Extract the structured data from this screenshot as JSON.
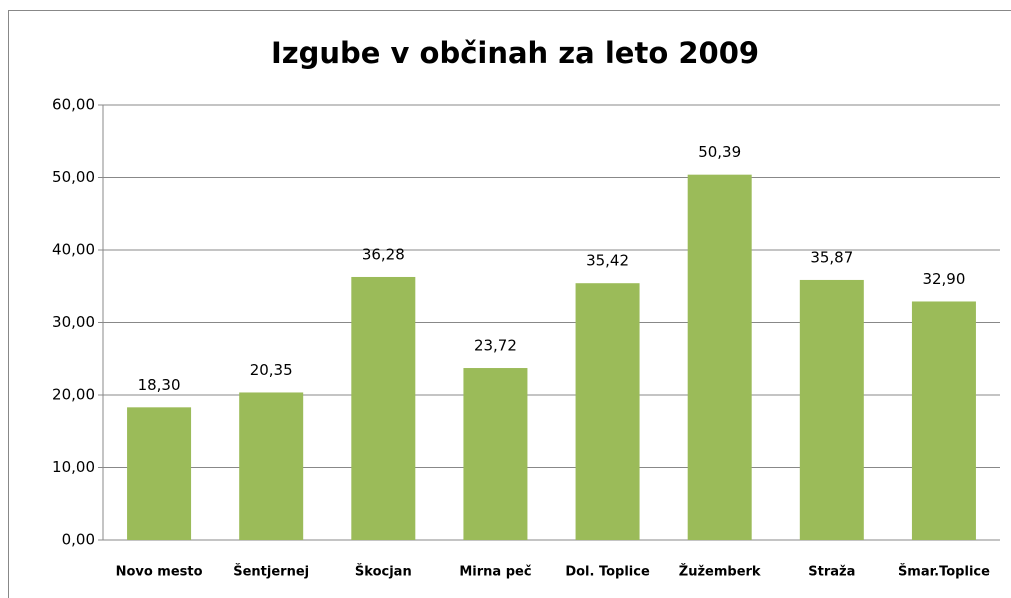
{
  "chart_data": {
    "type": "bar",
    "title": "Izgube v občinah za leto 2009",
    "categories": [
      "Novo mesto",
      "Šentjernej",
      "Škocjan",
      "Mirna peč",
      "Dol. Toplice",
      "Žužemberk",
      "Straža",
      "Šmar.Toplice"
    ],
    "values": [
      18.3,
      20.35,
      36.28,
      23.72,
      35.42,
      50.39,
      35.87,
      32.9
    ],
    "value_labels": [
      "18,30",
      "20,35",
      "36,28",
      "23,72",
      "35,42",
      "50,39",
      "35,87",
      "32,90"
    ],
    "color": "#9bbb59",
    "ylim": [
      0,
      60
    ],
    "yticks": [
      {
        "value": 0,
        "label": "0,00"
      },
      {
        "value": 10,
        "label": "10,00"
      },
      {
        "value": 20,
        "label": "20,00"
      },
      {
        "value": 30,
        "label": "30,00"
      },
      {
        "value": 40,
        "label": "40,00"
      },
      {
        "value": 50,
        "label": "50,00"
      },
      {
        "value": 60,
        "label": "60,00"
      }
    ],
    "grid": true
  }
}
